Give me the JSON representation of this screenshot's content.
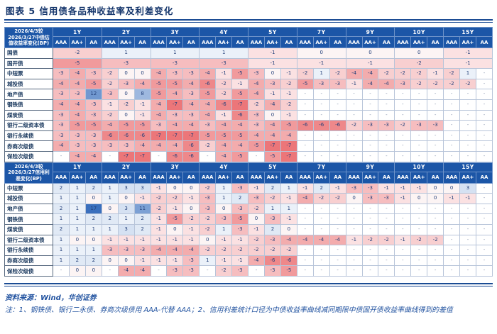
{
  "title": "图表 5  信用债各品种收益率及利差变化",
  "tenors": [
    "1Y",
    "2Y",
    "3Y",
    "4Y",
    "5Y",
    "7Y",
    "9Y",
    "10Y",
    "15Y"
  ],
  "ratings": [
    "AAA",
    "AA+",
    "AA"
  ],
  "heat": {
    "neg_limit": 7,
    "pos_limit": 17,
    "neg_color": "#ec7679",
    "pos_color": "#3a6fbd",
    "zero_color": "#fcf4f4",
    "header_bg": "#1c56a7"
  },
  "tables": [
    {
      "name": "yield-change-table",
      "corner_lines": [
        "2026/4/3较",
        "2026/3/27中债估",
        "值收益率变化(BP)"
      ],
      "merged_rows": [
        {
          "label": "国债",
          "values": [
            -2,
            1,
            1,
            1,
            -1,
            0,
            0,
            0,
            -1
          ]
        },
        {
          "label": "国开债",
          "values": [
            -5,
            -3,
            -3,
            -3,
            -1,
            -1,
            -1,
            -2,
            -1
          ]
        }
      ],
      "rows": [
        {
          "label": "中短票",
          "values": [
            -3,
            -4,
            -3,
            -2,
            0,
            0,
            -4,
            -3,
            -3,
            -4,
            -1,
            -5,
            -3,
            0,
            -1,
            -2,
            1,
            -2,
            -4,
            -4,
            -2,
            -2,
            -2,
            -1,
            -2,
            1,
            "-"
          ]
        },
        {
          "label": "城投债",
          "values": [
            -4,
            -4,
            -5,
            -2,
            -3,
            -4,
            -5,
            -5,
            -4,
            -6,
            -2,
            -1,
            -4,
            -3,
            -2,
            -5,
            -3,
            -3,
            -1,
            -4,
            -4,
            -3,
            -2,
            -2,
            -2,
            -2,
            "-"
          ]
        },
        {
          "label": "地产债",
          "values": [
            -3,
            -3,
            12,
            -3,
            0,
            8,
            -5,
            -4,
            -3,
            -5,
            -2,
            -5,
            -4,
            -1,
            -1,
            "-",
            "-",
            "-",
            "-",
            "-",
            "-",
            "-",
            "-",
            "-",
            "-",
            "-",
            "-"
          ]
        },
        {
          "label": "钢铁债",
          "values": [
            -4,
            -4,
            -3,
            -1,
            -2,
            -1,
            -4,
            -7,
            -4,
            -4,
            -6,
            -7,
            -2,
            -4,
            -2,
            "-",
            "-",
            "-",
            "-",
            "-",
            "-",
            "-",
            "-",
            "-",
            "-",
            "-",
            "-"
          ]
        },
        {
          "label": "煤炭债",
          "values": [
            -3,
            -4,
            -3,
            -2,
            0,
            -1,
            -4,
            -3,
            -3,
            -4,
            -1,
            -6,
            -3,
            0,
            -1,
            "-",
            "-",
            "-",
            "-",
            "-",
            "-",
            "-",
            "-",
            "-",
            "-",
            "-",
            "-"
          ]
        },
        {
          "label": "银行二级资本债",
          "values": [
            -3,
            -5,
            -5,
            -4,
            -5,
            -5,
            -3,
            -4,
            -4,
            -3,
            -4,
            -4,
            -3,
            -4,
            -5,
            -6,
            -6,
            -6,
            -2,
            -3,
            -3,
            -2,
            -3,
            -3,
            "-",
            "-",
            "-"
          ]
        },
        {
          "label": "银行永续债",
          "values": [
            -3,
            -3,
            -3,
            -6,
            -6,
            -6,
            -7,
            -7,
            -7,
            -5,
            -5,
            -5,
            -4,
            -4,
            -4,
            "-",
            "-",
            "-",
            "-",
            "-",
            "-",
            "-",
            "-",
            "-",
            "-",
            "-",
            "-"
          ]
        },
        {
          "label": "券商次级债",
          "values": [
            -4,
            -3,
            -3,
            -3,
            -3,
            -4,
            -4,
            -4,
            -6,
            -2,
            -4,
            -4,
            -5,
            -7,
            -7,
            "-",
            "-",
            "-",
            "-",
            "-",
            "-",
            "-",
            "-",
            "-",
            "-",
            "-",
            "-"
          ]
        },
        {
          "label": "保险次级债",
          "values": [
            "-",
            -4,
            -4,
            "-",
            -7,
            -7,
            "-",
            -6,
            -6,
            "-",
            -4,
            -5,
            "-",
            -5,
            -7,
            "-",
            "-",
            "-",
            "-",
            "-",
            "-",
            "-",
            "-",
            "-",
            "-",
            "-",
            "-"
          ]
        }
      ]
    },
    {
      "name": "spread-change-table",
      "corner_lines": [
        "2026/4/3较",
        "2026/3/27信用利",
        "差变化(BP)"
      ],
      "merged_rows": [],
      "rows": [
        {
          "label": "中短票",
          "values": [
            2,
            1,
            2,
            1,
            3,
            3,
            -1,
            0,
            0,
            -2,
            1,
            -3,
            -1,
            2,
            1,
            -1,
            2,
            -1,
            -3,
            -3,
            -1,
            -1,
            -1,
            0,
            0,
            3,
            "-"
          ]
        },
        {
          "label": "城投债",
          "values": [
            1,
            1,
            0,
            1,
            0,
            -1,
            -2,
            -2,
            -1,
            -3,
            1,
            2,
            -3,
            -2,
            -1,
            -4,
            -2,
            -2,
            0,
            -3,
            -3,
            -1,
            0,
            0,
            -1,
            -1,
            "-"
          ]
        },
        {
          "label": "地产债",
          "values": [
            2,
            1,
            17,
            0,
            3,
            11,
            -2,
            -1,
            0,
            -3,
            0,
            -3,
            -2,
            1,
            1,
            "-",
            "-",
            "-",
            "-",
            "-",
            "-",
            "-",
            "-",
            "-",
            "-",
            "-",
            "-"
          ]
        },
        {
          "label": "钢铁债",
          "values": [
            1,
            1,
            2,
            2,
            1,
            2,
            -1,
            -5,
            -2,
            -2,
            -3,
            -5,
            0,
            -3,
            -1,
            "-",
            "-",
            "-",
            "-",
            "-",
            "-",
            "-",
            "-",
            "-",
            "-",
            "-",
            "-"
          ]
        },
        {
          "label": "煤炭债",
          "values": [
            2,
            1,
            1,
            1,
            3,
            2,
            -1,
            0,
            -1,
            -2,
            1,
            -3,
            -1,
            2,
            0,
            "-",
            "-",
            "-",
            "-",
            "-",
            "-",
            "-",
            "-",
            "-",
            "-",
            "-",
            "-"
          ]
        },
        {
          "label": "银行二级资本债",
          "values": [
            1,
            0,
            0,
            -1,
            -1,
            -1,
            -1,
            -1,
            -1,
            0,
            -1,
            -1,
            -2,
            -3,
            -4,
            -4,
            -4,
            -4,
            -1,
            -2,
            -2,
            -1,
            -2,
            -2,
            "-",
            "-",
            "-"
          ]
        },
        {
          "label": "银行永续债",
          "values": [
            1,
            1,
            1,
            -3,
            -3,
            -3,
            -4,
            -4,
            -4,
            -2,
            -2,
            -2,
            -2,
            -2,
            -2,
            "-",
            "-",
            "-",
            "-",
            "-",
            "-",
            "-",
            "-",
            "-",
            "-",
            "-",
            "-"
          ]
        },
        {
          "label": "券商次级债",
          "values": [
            1,
            2,
            2,
            0,
            0,
            -1,
            -1,
            -1,
            -3,
            1,
            -1,
            -1,
            -4,
            -6,
            -6,
            "-",
            "-",
            "-",
            "-",
            "-",
            "-",
            "-",
            "-",
            "-",
            "-",
            "-",
            "-"
          ]
        },
        {
          "label": "保险次级债",
          "values": [
            "-",
            0,
            0,
            "-",
            -4,
            -4,
            "-",
            -3,
            -3,
            "-",
            -2,
            -3,
            "-",
            -3,
            -5,
            "-",
            "-",
            "-",
            "-",
            "-",
            "-",
            "-",
            "-",
            "-",
            "-",
            "-",
            "-"
          ]
        }
      ]
    }
  ],
  "footer": {
    "source": "资料来源：Wind，华创证券",
    "note": "注：1、钢铁债、银行二永债、券商次级债用 AAA-代替 AAA；2、信用利差统计口径为中债收益率曲线减同期限中债国开债收益率曲线得到的差值"
  }
}
